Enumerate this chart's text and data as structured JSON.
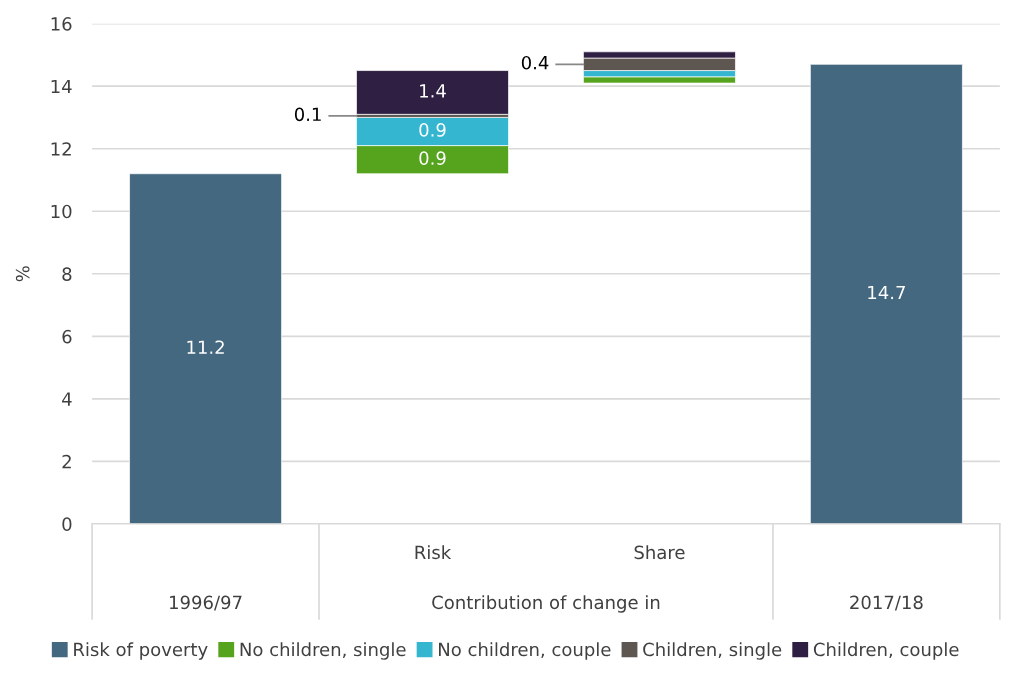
{
  "chart_data": {
    "type": "bar",
    "categories": [
      "1996/97",
      "Risk",
      "Share",
      "2017/18"
    ],
    "series": [
      {
        "name": "Risk of poverty",
        "color": "#44687f",
        "values": [
          11.2,
          null,
          null,
          14.7
        ],
        "base": [
          0,
          null,
          null,
          0
        ],
        "value_labels": [
          "11.2",
          null,
          null,
          "14.7"
        ]
      },
      {
        "name": "No children, single",
        "color": "#56a31e",
        "values": [
          null,
          0.9,
          0.2,
          null
        ],
        "base": [
          null,
          11.2,
          14.1,
          null
        ],
        "value_labels": [
          null,
          "0.9",
          null,
          null
        ]
      },
      {
        "name": "No children, couple",
        "color": "#35b6d0",
        "values": [
          null,
          0.9,
          0.2,
          null
        ],
        "base": [
          null,
          12.1,
          14.3,
          null
        ],
        "value_labels": [
          null,
          "0.9",
          null,
          null
        ]
      },
      {
        "name": "Children, single",
        "color": "#5e5651",
        "values": [
          null,
          0.1,
          0.4,
          null
        ],
        "base": [
          null,
          13.0,
          14.5,
          null
        ],
        "value_labels": [
          null,
          "0.1",
          "0.4",
          null
        ]
      },
      {
        "name": "Children, couple",
        "color": "#2f1f42",
        "values": [
          null,
          1.4,
          0.2,
          null
        ],
        "base": [
          null,
          13.1,
          14.9,
          null
        ],
        "value_labels": [
          null,
          "1.4",
          null,
          null
        ]
      }
    ],
    "ylabel": "%",
    "ylim": [
      0,
      16
    ],
    "yticks": [
      0,
      2,
      4,
      6,
      8,
      10,
      12,
      14,
      16
    ],
    "grid": "y",
    "legend": "bottom",
    "annotations": [
      "Contribution of change in"
    ]
  }
}
